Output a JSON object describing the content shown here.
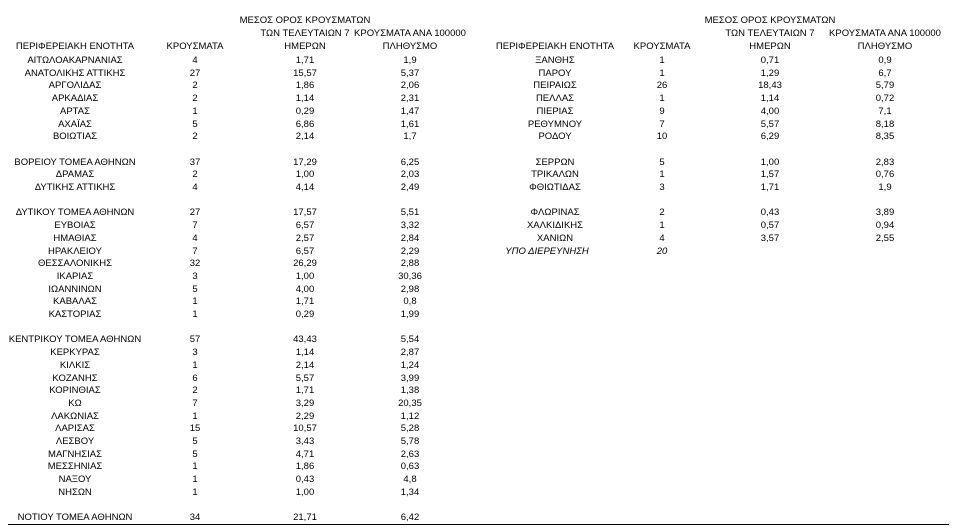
{
  "tables": [
    {
      "headers": [
        [
          "ΠΕΡΙΦΕΡΕΙΑΚΗ ΕΝΟΤΗΤΑ"
        ],
        [
          "ΚΡΟΥΣΜΑΤΑ"
        ],
        [
          "ΜΕΣΟΣ ΟΡΟΣ ΚΡΟΥΣΜΑΤΩΝ",
          "ΤΩΝ ΤΕΛΕΥΤΑΙΩΝ 7",
          "ΗΜΕΡΩΝ"
        ],
        [
          "ΚΡΟΥΣΜΑΤΑ ΑΝΑ 100000",
          "ΠΛΗΘΥΣΜΟ"
        ]
      ],
      "groups": [
        [
          [
            "ΑΙΤΩΛΟΑΚΑΡΝΑΝΙΑΣ",
            "4",
            "1,71",
            "1,9"
          ],
          [
            "ΑΝΑΤΟΛΙΚΗΣ ΑΤΤΙΚΗΣ",
            "27",
            "15,57",
            "5,37"
          ],
          [
            "ΑΡΓΟΛΙΔΑΣ",
            "2",
            "1,86",
            "2,06"
          ],
          [
            "ΑΡΚΑΔΙΑΣ",
            "2",
            "1,14",
            "2,31"
          ],
          [
            "ΑΡΤΑΣ",
            "1",
            "0,29",
            "1,47"
          ],
          [
            "ΑΧΑΪΑΣ",
            "5",
            "6,86",
            "1,61"
          ],
          [
            "ΒΟΙΩΤΙΑΣ",
            "2",
            "2,14",
            "1,7"
          ]
        ],
        [
          [
            "ΒΟΡΕΙΟΥ ΤΟΜΕΑ ΑΘΗΝΩΝ",
            "37",
            "17,29",
            "6,25"
          ],
          [
            "ΔΡΑΜΑΣ",
            "2",
            "1,00",
            "2,03"
          ],
          [
            "ΔΥΤΙΚΗΣ ΑΤΤΙΚΗΣ",
            "4",
            "4,14",
            "2,49"
          ]
        ],
        [
          [
            "ΔΥΤΙΚΟΥ ΤΟΜΕΑ ΑΘΗΝΩΝ",
            "27",
            "17,57",
            "5,51"
          ],
          [
            "ΕΥΒΟΙΑΣ",
            "7",
            "6,57",
            "3,32"
          ],
          [
            "ΗΜΑΘΙΑΣ",
            "4",
            "2,57",
            "2,84"
          ],
          [
            "ΗΡΑΚΛΕΙΟΥ",
            "7",
            "6,57",
            "2,29"
          ],
          [
            "ΘΕΣΣΑΛΟΝΙΚΗΣ",
            "32",
            "26,29",
            "2,88"
          ],
          [
            "ΙΚΑΡΙΑΣ",
            "3",
            "1,00",
            "30,36"
          ],
          [
            "ΙΩΑΝΝΙΝΩΝ",
            "5",
            "4,00",
            "2,98"
          ],
          [
            "ΚΑΒΑΛΑΣ",
            "1",
            "1,71",
            "0,8"
          ],
          [
            "ΚΑΣΤΟΡΙΑΣ",
            "1",
            "0,29",
            "1,99"
          ]
        ],
        [
          [
            "ΚΕΝΤΡΙΚΟΥ ΤΟΜΕΑ ΑΘΗΝΩΝ",
            "57",
            "43,43",
            "5,54"
          ],
          [
            "ΚΕΡΚΥΡΑΣ",
            "3",
            "1,14",
            "2,87"
          ],
          [
            "ΚΙΛΚΙΣ",
            "1",
            "2,14",
            "1,24"
          ],
          [
            "ΚΟΖΑΝΗΣ",
            "6",
            "5,57",
            "3,99"
          ],
          [
            "ΚΟΡΙΝΘΙΑΣ",
            "2",
            "1,71",
            "1,38"
          ],
          [
            "ΚΩ",
            "7",
            "3,29",
            "20,35"
          ],
          [
            "ΛΑΚΩΝΙΑΣ",
            "1",
            "2,29",
            "1,12"
          ],
          [
            "ΛΑΡΙΣΑΣ",
            "15",
            "10,57",
            "5,28"
          ],
          [
            "ΛΕΣΒΟΥ",
            "5",
            "3,43",
            "5,78"
          ],
          [
            "ΜΑΓΝΗΣΙΑΣ",
            "5",
            "4,71",
            "2,63"
          ],
          [
            "ΜΕΣΣΗΝΙΑΣ",
            "1",
            "1,86",
            "0,63"
          ],
          [
            "ΝΑΞΟΥ",
            "1",
            "0,43",
            "4,8"
          ],
          [
            "ΝΗΣΩΝ",
            "1",
            "1,00",
            "1,34"
          ]
        ],
        [
          [
            "ΝΟΤΙΟΥ ΤΟΜΕΑ ΑΘΗΝΩΝ",
            "34",
            "21,71",
            "6,42"
          ]
        ]
      ]
    },
    {
      "headers": [
        [
          "ΠΕΡΙΦΕΡΕΙΑΚΗ ΕΝΟΤΗΤΑ"
        ],
        [
          "ΚΡΟΥΣΜΑΤΑ"
        ],
        [
          "ΜΕΣΟΣ ΟΡΟΣ ΚΡΟΥΣΜΑΤΩΝ",
          "ΤΩΝ ΤΕΛΕΥΤΑΙΩΝ 7",
          "ΗΜΕΡΩΝ"
        ],
        [
          "ΚΡΟΥΣΜΑΤΑ ΑΝΑ 100000",
          "ΠΛΗΘΥΣΜΟ"
        ]
      ],
      "groups": [
        [
          [
            "ΞΑΝΘΗΣ",
            "1",
            "0,71",
            "0,9"
          ],
          [
            "ΠΑΡΟΥ",
            "1",
            "1,29",
            "6,7"
          ],
          [
            "ΠΕΙΡΑΙΩΣ",
            "26",
            "18,43",
            "5,79"
          ],
          [
            "ΠΕΛΛΑΣ",
            "1",
            "1,14",
            "0,72"
          ],
          [
            "ΠΙΕΡΙΑΣ",
            "9",
            "4,00",
            "7,1"
          ],
          [
            "ΡΕΘΥΜΝΟΥ",
            "7",
            "5,57",
            "8,18"
          ],
          [
            "ΡΟΔΟΥ",
            "10",
            "6,29",
            "8,35"
          ]
        ],
        [
          [
            "ΣΕΡΡΩΝ",
            "5",
            "1,00",
            "2,83"
          ],
          [
            "ΤΡΙΚΑΛΩΝ",
            "1",
            "1,57",
            "0,76"
          ],
          [
            "ΦΘΙΩΤΙΔΑΣ",
            "3",
            "1,71",
            "1,9"
          ]
        ],
        [
          [
            "ΦΛΩΡΙΝΑΣ",
            "2",
            "0,43",
            "3,89"
          ],
          [
            "ΧΑΛΚΙΔΙΚΗΣ",
            "1",
            "0,57",
            "0,94"
          ],
          [
            "ΧΑΝΙΩΝ",
            "4",
            "3,57",
            "2,55"
          ],
          [
            "ΥΠΟ ΔΙΕΡΕΥΝΗΣΗ",
            "20"
          ]
        ]
      ]
    }
  ]
}
